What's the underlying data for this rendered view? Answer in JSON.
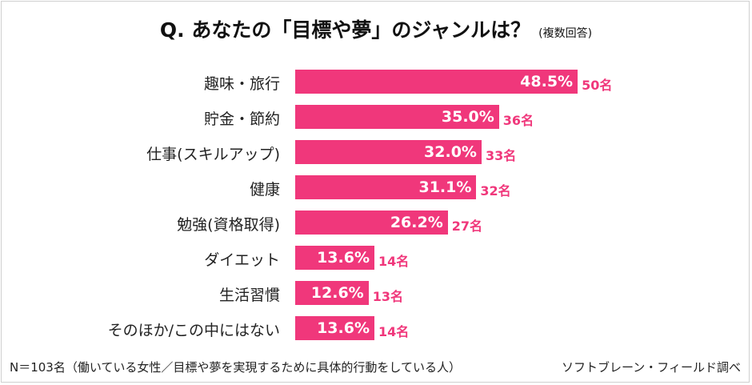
{
  "chart_data": {
    "type": "bar",
    "orientation": "horizontal",
    "title": "Q.  あなたの「目標や夢」のジャンルは？",
    "subtitle": "(複数回答)",
    "categories": [
      "趣味・旅行",
      "貯金・節約",
      "仕事(スキルアップ)",
      "健康",
      "勉強(資格取得)",
      "ダイエット",
      "生活習慣",
      "そのほか/この中にはない"
    ],
    "values": [
      48.5,
      35.0,
      32.0,
      31.1,
      26.2,
      13.6,
      12.6,
      13.6
    ],
    "value_labels": [
      "48.5%",
      "35.0%",
      "32.0%",
      "31.1%",
      "26.2%",
      "13.6%",
      "12.6%",
      "13.6%"
    ],
    "count_labels": [
      "50名",
      "36名",
      "33名",
      "32名",
      "27名",
      "14名",
      "13名",
      "14名"
    ],
    "xlim": [
      0,
      100
    ],
    "bar_color": "#F0377B"
  },
  "footer": {
    "note": "N＝103名（働いている女性／目標や夢を実現するために具体的行動をしている人）",
    "source": "ソフトブレーン・フィールド調べ"
  }
}
